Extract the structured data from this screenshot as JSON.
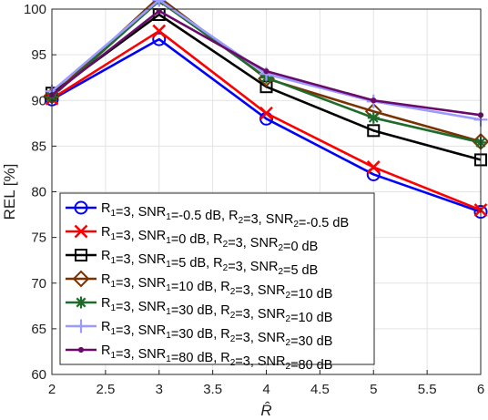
{
  "chart_data": {
    "type": "line",
    "xlabel": "R̂",
    "ylabel": "REL [%]",
    "xlim": [
      2,
      6
    ],
    "ylim": [
      60,
      100
    ],
    "xticks": [
      "2",
      "2.5",
      "3",
      "3.5",
      "4",
      "4.5",
      "5",
      "5.5",
      "6"
    ],
    "yticks": [
      "60",
      "65",
      "70",
      "75",
      "80",
      "85",
      "90",
      "95",
      "100"
    ],
    "grid": true,
    "legend_position": "bottom-left",
    "x": [
      2,
      3,
      4,
      5,
      6
    ],
    "series": [
      {
        "name": "R1=3, SNR1=-0.5 dB, R2=3, SNR2=-0.5 dB",
        "legend_parts": [
          [
            "R",
            "1"
          ],
          [
            "=3, SNR",
            ""
          ],
          [
            "",
            "1"
          ],
          [
            "=-0.5 dB, R",
            ""
          ],
          [
            "",
            "2"
          ],
          [
            "=3, SNR",
            ""
          ],
          [
            "",
            "2"
          ],
          [
            "=-0.5 dB",
            ""
          ]
        ],
        "values": [
          90.1,
          96.7,
          88.0,
          81.9,
          77.8
        ],
        "color": "#0000ff",
        "marker": "circle"
      },
      {
        "name": "R1=3, SNR1=0 dB, R2=3, SNR2=0 dB",
        "legend_parts": [
          [
            "R",
            ""
          ],
          [
            "",
            "1"
          ],
          [
            "=3, SNR",
            ""
          ],
          [
            "",
            "1"
          ],
          [
            "=0 dB, R",
            ""
          ],
          [
            "",
            "2"
          ],
          [
            "=3, SNR",
            ""
          ],
          [
            "",
            "2"
          ],
          [
            "=0 dB",
            ""
          ]
        ],
        "values": [
          90.2,
          97.6,
          88.6,
          82.7,
          78.0
        ],
        "color": "#ff0000",
        "marker": "x"
      },
      {
        "name": "R1=3, SNR1=5 dB, R2=3, SNR2=5 dB",
        "legend_parts": [
          [
            "R",
            ""
          ],
          [
            "",
            "1"
          ],
          [
            "=3, SNR",
            ""
          ],
          [
            "",
            "1"
          ],
          [
            "=5 dB, R",
            ""
          ],
          [
            "",
            "2"
          ],
          [
            "=3, SNR",
            ""
          ],
          [
            "",
            "2"
          ],
          [
            "=5 dB",
            ""
          ]
        ],
        "values": [
          90.8,
          99.4,
          91.5,
          86.7,
          83.5
        ],
        "color": "#000000",
        "marker": "square"
      },
      {
        "name": "R1=3, SNR1=10 dB, R2=3, SNR2=10 dB",
        "legend_parts": [
          [
            "R",
            ""
          ],
          [
            "",
            "1"
          ],
          [
            "=3, SNR",
            ""
          ],
          [
            "",
            "1"
          ],
          [
            "=10 dB, R",
            ""
          ],
          [
            "",
            "2"
          ],
          [
            "=3, SNR",
            ""
          ],
          [
            "",
            "2"
          ],
          [
            "=10 dB",
            ""
          ]
        ],
        "values": [
          90.5,
          101.3,
          92.4,
          88.8,
          85.5
        ],
        "color": "#7a3300",
        "marker": "diamond"
      },
      {
        "name": "R1=3, SNR1=30 dB, R2=3, SNR2=10 dB",
        "legend_parts": [
          [
            "R",
            ""
          ],
          [
            "",
            "1"
          ],
          [
            "=3, SNR",
            ""
          ],
          [
            "",
            "1"
          ],
          [
            "=30 dB, R",
            ""
          ],
          [
            "",
            "2"
          ],
          [
            "=3, SNR",
            ""
          ],
          [
            "",
            "2"
          ],
          [
            "=10 dB",
            ""
          ]
        ],
        "values": [
          90.4,
          100.9,
          92.5,
          88.1,
          85.4
        ],
        "color": "#1f6b2c",
        "marker": "asterisk"
      },
      {
        "name": "R1=3, SNR1=30 dB, R2=3, SNR2=30 dB",
        "legend_parts": [
          [
            "R",
            ""
          ],
          [
            "",
            "1"
          ],
          [
            "=3, SNR",
            ""
          ],
          [
            "",
            "1"
          ],
          [
            "=30 dB, R",
            ""
          ],
          [
            "",
            "2"
          ],
          [
            "=3, SNR",
            ""
          ],
          [
            "",
            "2"
          ],
          [
            "=30 dB",
            ""
          ]
        ],
        "values": [
          91.0,
          101.0,
          92.9,
          89.9,
          87.9
        ],
        "color": "#9b9bff",
        "marker": "plus"
      },
      {
        "name": "R1=3, SNR1=80 dB, R2=3, SNR2=80 dB",
        "legend_parts": [
          [
            "R",
            ""
          ],
          [
            "",
            "1"
          ],
          [
            "=3, SNR",
            ""
          ],
          [
            "",
            "1"
          ],
          [
            "=80 dB, R",
            ""
          ],
          [
            "",
            "2"
          ],
          [
            "=3, SNR",
            ""
          ],
          [
            "",
            "2"
          ],
          [
            "=80 dB",
            ""
          ]
        ],
        "values": [
          90.6,
          99.8,
          93.2,
          90.0,
          88.4
        ],
        "color": "#6a0a6a",
        "marker": "dot"
      }
    ]
  }
}
